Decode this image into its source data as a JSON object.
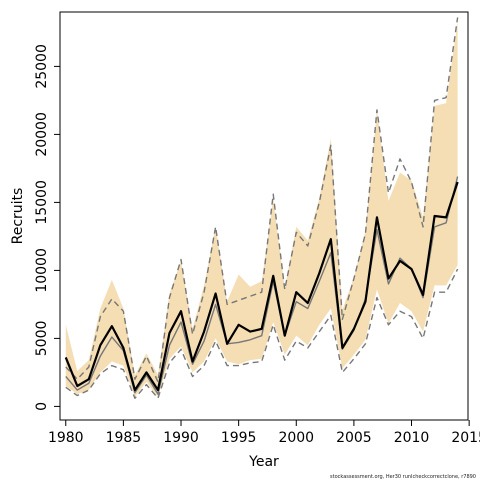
{
  "chart_data": {
    "type": "line",
    "title": "",
    "xlabel": "Year",
    "ylabel": "Recruits",
    "footnote": "stockassessment.org, Her30 runlcheckcorrectclone, r7890",
    "xlim": [
      1979.5,
      2014.9
    ],
    "ylim": [
      -1000,
      29000
    ],
    "xticks": [
      1980,
      1985,
      1990,
      1995,
      2000,
      2005,
      2010,
      2015
    ],
    "yticks": [
      0,
      5000,
      10000,
      15000,
      20000,
      25000
    ],
    "grid": false,
    "colors": {
      "band": "#f5deb3",
      "estimate": "#000000",
      "comparison": "#777777",
      "bounds": "#777777"
    },
    "x": [
      1980,
      1981,
      1982,
      1983,
      1984,
      1985,
      1986,
      1987,
      1988,
      1989,
      1990,
      1991,
      1992,
      1993,
      1994,
      1995,
      1996,
      1997,
      1998,
      1999,
      2000,
      2001,
      2002,
      2003,
      2004,
      2005,
      2006,
      2007,
      2008,
      2009,
      2010,
      2011,
      2012,
      2013,
      2014
    ],
    "series": [
      {
        "values": [
          3600,
          1500,
          2000,
          4500,
          5900,
          4300,
          1200,
          2500,
          1200,
          5400,
          7000,
          3300,
          5500,
          8300,
          4600,
          6000,
          5500,
          5700,
          9600,
          5200,
          8400,
          7600,
          9800,
          12300,
          4300,
          5700,
          7700,
          13900,
          9400,
          10700,
          10100,
          8200,
          14000,
          13900,
          16500
        ]
      },
      {
        "values": [
          2200,
          1200,
          1700,
          3700,
          5100,
          4100,
          1000,
          2300,
          900,
          4500,
          6200,
          3100,
          4800,
          7500,
          4600,
          4700,
          4900,
          5200,
          9200,
          5200,
          7700,
          7200,
          9200,
          11300,
          4200,
          5600,
          7900,
          13000,
          9000,
          10900,
          10100,
          8000,
          13200,
          13500,
          16900
        ]
      },
      {
        "values": [
          1400,
          800,
          1200,
          2400,
          3000,
          2700,
          600,
          1600,
          600,
          3200,
          4200,
          2200,
          3000,
          4800,
          3000,
          3000,
          3200,
          3300,
          6000,
          3400,
          4800,
          4300,
          5500,
          6700,
          2500,
          3500,
          4600,
          8000,
          6000,
          7000,
          6600,
          5000,
          8400,
          8400,
          10100
        ]
      },
      {
        "values": [
          2900,
          2000,
          2900,
          6600,
          7900,
          7000,
          2000,
          3700,
          1800,
          8000,
          10800,
          5300,
          8400,
          13200,
          7500,
          7800,
          8100,
          8400,
          15600,
          8600,
          12800,
          11800,
          15000,
          19200,
          6400,
          9400,
          12700,
          21800,
          15700,
          18200,
          16500,
          13200,
          22500,
          22700,
          28600
        ]
      }
    ],
    "band": {
      "lower": [
        1500,
        900,
        1200,
        2500,
        3300,
        3000,
        700,
        1800,
        700,
        3500,
        4400,
        2500,
        3300,
        5000,
        3300,
        3100,
        3400,
        3500,
        6200,
        3800,
        5200,
        4500,
        6000,
        7200,
        2800,
        3800,
        4900,
        8600,
        6100,
        7600,
        7000,
        5500,
        8900,
        8900,
        10400
      ],
      "upper": [
        6000,
        2600,
        3400,
        7200,
        9300,
        7200,
        2300,
        3900,
        2300,
        8300,
        10700,
        5700,
        8900,
        13200,
        7700,
        9700,
        8800,
        9200,
        15200,
        8700,
        13200,
        12200,
        15300,
        19700,
        7100,
        9500,
        12900,
        21800,
        15100,
        17200,
        16600,
        13900,
        22100,
        22300,
        28300
      ]
    }
  }
}
